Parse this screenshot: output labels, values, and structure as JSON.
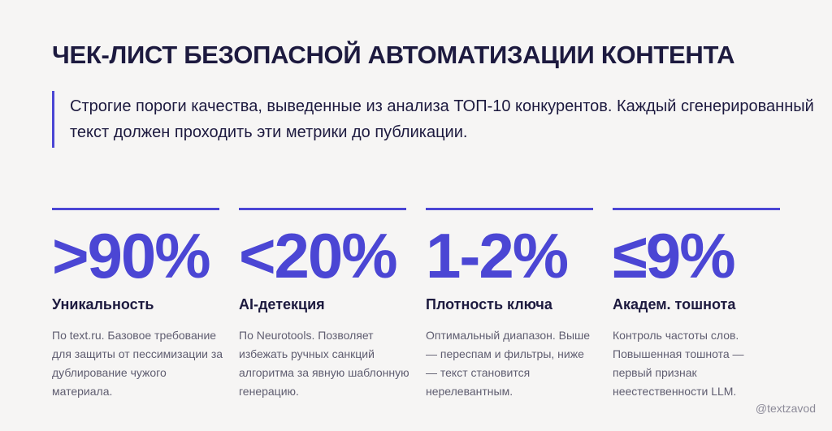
{
  "title": "ЧЕК-ЛИСТ БЕЗОПАСНОЙ АВТОМАТИЗАЦИИ КОНТЕНТА",
  "intro": {
    "lines": [
      "Строгие пороги качества, выведенные из анализа ТОП-10 конкурентов. Каждый сгенерированный",
      "текст должен проходить эти метрики до публикации."
    ]
  },
  "accent_color": "#4b46d4",
  "metrics": [
    {
      "value": ">90%",
      "label": "Уникальность",
      "desc": [
        "По text.ru. Базовое требование",
        "для защиты от пессимизации за",
        "дублирование чужого",
        "материала."
      ]
    },
    {
      "value": "<20%",
      "label": "AI-детекция",
      "desc": [
        "По Neurotools. Позволяет",
        "избежать ручных санкций",
        "алгоритма за явную шаблонную",
        "генерацию."
      ]
    },
    {
      "value": "1-2%",
      "label": "Плотность ключа",
      "desc": [
        "Оптимальный диапазон. Выше",
        "— переспам и фильтры, ниже",
        "— текст становится",
        "нерелевантным."
      ]
    },
    {
      "value": "≤9%",
      "label": "Академ. тошнота",
      "desc": [
        "Контроль частоты слов.",
        "Повышенная тошнота —",
        "первый признак",
        "неестественности LLM."
      ]
    }
  ],
  "handle": "@textzavod"
}
